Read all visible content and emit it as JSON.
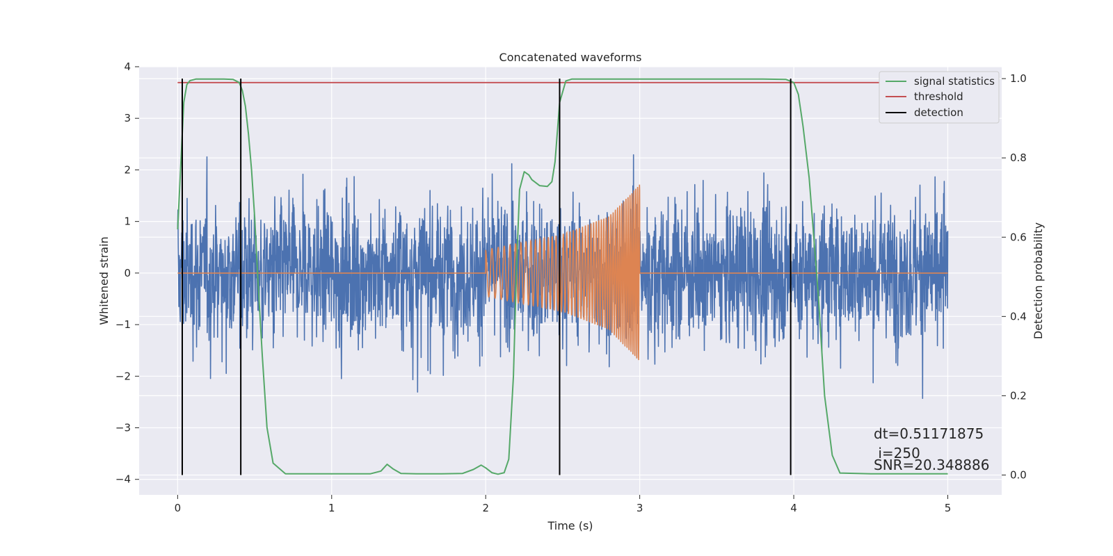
{
  "chart_data": {
    "type": "line",
    "title": "Concatenated waveforms",
    "xlabel": "Time (s)",
    "ylabel_left": "Whitened strain",
    "ylabel_right": "Detection probability",
    "xlim": [
      -0.25,
      5.35
    ],
    "ylim_left": [
      -4.3,
      4.0
    ],
    "ylim_right": [
      -0.05,
      1.03
    ],
    "x_ticks": [
      0,
      1,
      2,
      3,
      4,
      5
    ],
    "x_tick_labels": [
      "0",
      "1",
      "2",
      "3",
      "4",
      "5"
    ],
    "y_left_ticks": [
      4,
      3,
      2,
      1,
      0,
      -1,
      -2,
      -3,
      -4
    ],
    "y_left_tick_labels": [
      "4",
      "3",
      "2",
      "1",
      "0",
      "−1",
      "−2",
      "−3",
      "−4"
    ],
    "y_right_ticks": [
      1.0,
      0.8,
      0.6,
      0.4,
      0.2,
      0.0
    ],
    "y_right_tick_labels": [
      "1.0",
      "0.8",
      "0.6",
      "0.4",
      "0.2",
      "0.0"
    ],
    "grid": true,
    "legend_placement": "top-right",
    "legend": [
      "signal statistics",
      "threshold",
      "detection"
    ],
    "annotation_lines": [
      "dt=0.51171875",
      " i=250",
      "SNR=20.348886"
    ],
    "colors": {
      "strain": "#4c72b0",
      "injection": "#dd8452",
      "signal_statistics": "#55a868",
      "threshold": "#c44e52",
      "detection": "#000000",
      "background": "#eaeaf2",
      "grid": "#ffffff"
    },
    "series": [
      {
        "name": "signal statistics",
        "axis": "right",
        "x": [
          0.0,
          0.02,
          0.04,
          0.06,
          0.08,
          0.12,
          0.2,
          0.3,
          0.36,
          0.4,
          0.42,
          0.44,
          0.46,
          0.48,
          0.5,
          0.52,
          0.55,
          0.58,
          0.62,
          0.7,
          0.9,
          1.1,
          1.25,
          1.32,
          1.36,
          1.4,
          1.45,
          1.55,
          1.7,
          1.85,
          1.92,
          1.97,
          2.0,
          2.04,
          2.08,
          2.12,
          2.15,
          2.18,
          2.2,
          2.22,
          2.25,
          2.28,
          2.3,
          2.35,
          2.4,
          2.43,
          2.45,
          2.48,
          2.52,
          2.56,
          2.6,
          2.7,
          3.0,
          3.5,
          3.8,
          3.95,
          4.0,
          4.03,
          4.06,
          4.1,
          4.13,
          4.16,
          4.2,
          4.25,
          4.3,
          4.5,
          5.0
        ],
        "y": [
          0.62,
          0.78,
          0.94,
          0.985,
          0.995,
          0.999,
          0.999,
          0.999,
          0.998,
          0.99,
          0.97,
          0.93,
          0.86,
          0.77,
          0.65,
          0.5,
          0.3,
          0.12,
          0.03,
          0.003,
          0.003,
          0.003,
          0.003,
          0.01,
          0.027,
          0.015,
          0.004,
          0.003,
          0.003,
          0.004,
          0.014,
          0.025,
          0.018,
          0.006,
          0.002,
          0.006,
          0.04,
          0.25,
          0.52,
          0.72,
          0.765,
          0.757,
          0.745,
          0.73,
          0.728,
          0.74,
          0.79,
          0.94,
          0.994,
          0.999,
          0.999,
          0.999,
          0.999,
          0.999,
          0.999,
          0.998,
          0.99,
          0.96,
          0.88,
          0.75,
          0.6,
          0.45,
          0.2,
          0.05,
          0.005,
          0.003,
          0.003
        ]
      },
      {
        "name": "threshold",
        "axis": "right",
        "x": [
          0.0,
          5.0
        ],
        "y": [
          0.99,
          0.99
        ]
      },
      {
        "name": "detection",
        "axis": "right",
        "type": "vlines",
        "x": [
          0.03,
          0.41,
          2.48,
          3.98
        ],
        "y_range": [
          0.0,
          1.0
        ]
      },
      {
        "axis": "left",
        "type": "noise",
        "x_range": [
          0.0,
          5.0
        ],
        "amplitude_envelope": [
          1.9,
          -2.1
        ]
      },
      {
        "axis": "left",
        "type": "chirp",
        "x": [
          0.0,
          2.0,
          2.5,
          2.8,
          3.0,
          3.0,
          5.0
        ],
        "amplitude": [
          0.0,
          0.45,
          0.75,
          1.1,
          1.72,
          0.0,
          0.0
        ]
      }
    ]
  }
}
